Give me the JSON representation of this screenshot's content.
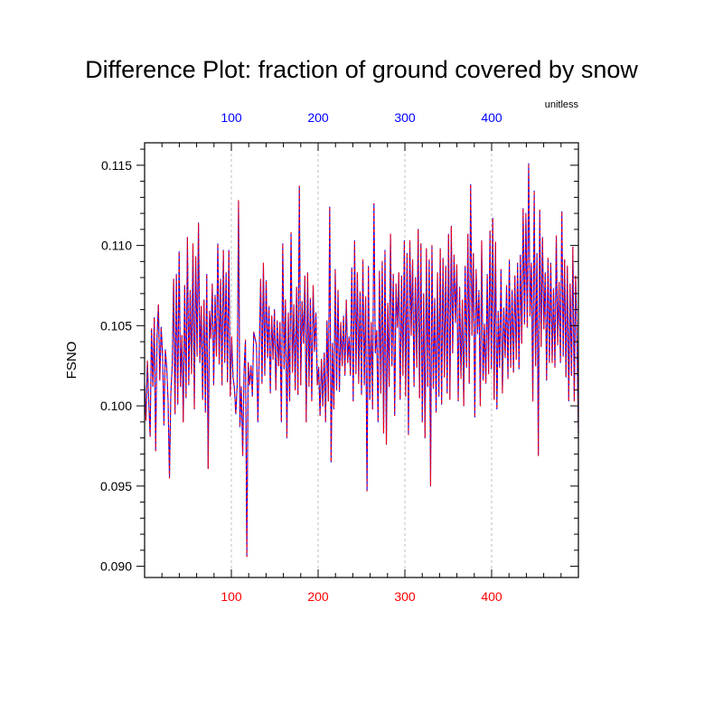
{
  "chart_data": {
    "type": "line",
    "title": "Difference Plot: fraction of ground covered by snow",
    "units_label": "unitless",
    "ylabel": "FSNO",
    "xlim": [
      0,
      500
    ],
    "ylim": [
      0.0893,
      0.1164
    ],
    "y_ticks": [
      0.09,
      0.095,
      0.1,
      0.105,
      0.11,
      0.115
    ],
    "y_tick_labels": [
      "0.090",
      "0.095",
      "0.100",
      "0.105",
      "0.110",
      "0.115"
    ],
    "x_ticks_bottom": [
      100,
      200,
      300,
      400
    ],
    "x_ticks_top": [
      100,
      200,
      300,
      400
    ],
    "colors": {
      "bottom_axis": "#ff0000",
      "top_axis": "#0000ff",
      "series_a": "#0000ff",
      "series_b": "#ff0000",
      "grid": "#b0b0b0"
    },
    "series": [
      {
        "values": [
          0.1013,
          0.0991,
          0.1028,
          0.1003,
          0.0981,
          0.1048,
          0.1012,
          0.1055,
          0.0972,
          0.1043,
          0.1063,
          0.1016,
          0.1049,
          0.1032,
          0.0988,
          0.1035,
          0.1024,
          0.1003,
          0.0955,
          0.1008,
          0.1025,
          0.1079,
          0.0995,
          0.1082,
          0.1001,
          0.1096,
          0.1012,
          0.1044,
          0.099,
          0.1075,
          0.1005,
          0.1105,
          0.1013,
          0.1072,
          0.102,
          0.1101,
          0.0998,
          0.1093,
          0.1031,
          0.1114,
          0.1027,
          0.1062,
          0.1004,
          0.1066,
          0.0996,
          0.1082,
          0.0961,
          0.1059,
          0.1042,
          0.1076,
          0.1013,
          0.1069,
          0.1031,
          0.1101,
          0.1026,
          0.1079,
          0.1013,
          0.1097,
          0.1027,
          0.1083,
          0.1015,
          0.1097,
          0.1006,
          0.1043,
          0.1018,
          0.1011,
          0.0995,
          0.1012,
          0.1128,
          0.0987,
          0.1012,
          0.0969,
          0.1022,
          0.1041,
          0.0906,
          0.1027,
          0.1013,
          0.1025,
          0.1006,
          0.1046,
          0.1042,
          0.1038,
          0.099,
          0.1035,
          0.1079,
          0.1014,
          0.1089,
          0.1019,
          0.1078,
          0.103,
          0.1062,
          0.1008,
          0.1056,
          0.1029,
          0.106,
          0.101,
          0.1053,
          0.1025,
          0.1052,
          0.099,
          0.1101,
          0.1023,
          0.1066,
          0.098,
          0.1058,
          0.1003,
          0.1108,
          0.1021,
          0.1063,
          0.101,
          0.1074,
          0.1007,
          0.1137,
          0.1013,
          0.1065,
          0.1039,
          0.1081,
          0.099,
          0.1083,
          0.1012,
          0.1067,
          0.1003,
          0.1075,
          0.1034,
          0.1058,
          0.1013,
          0.1024,
          0.0994,
          0.1029,
          0.1,
          0.1033,
          0.099,
          0.1053,
          0.1003,
          0.1124,
          0.0965,
          0.1039,
          0.0998,
          0.1085,
          0.101,
          0.1072,
          0.1009,
          0.1052,
          0.1025,
          0.1056,
          0.1019,
          0.1066,
          0.1027,
          0.1043,
          0.1019,
          0.1086,
          0.1003,
          0.1103,
          0.102,
          0.1083,
          0.1014,
          0.1071,
          0.1007,
          0.1091,
          0.1013,
          0.1068,
          0.0947,
          0.1087,
          0.1004,
          0.1052,
          0.0998,
          0.1126,
          0.1033,
          0.1047,
          0.099,
          0.1084,
          0.1008,
          0.109,
          0.0983,
          0.1097,
          0.0976,
          0.1064,
          0.1012,
          0.1107,
          0.1025,
          0.1082,
          0.0994,
          0.1076,
          0.1049,
          0.1083,
          0.1004,
          0.1081,
          0.1019,
          0.1103,
          0.1006,
          0.1095,
          0.0982,
          0.1103,
          0.1044,
          0.1091,
          0.1012,
          0.108,
          0.1024,
          0.111,
          0.1005,
          0.1101,
          0.099,
          0.107,
          0.098,
          0.1098,
          0.1012,
          0.1091,
          0.095,
          0.11,
          0.1011,
          0.1067,
          0.0996,
          0.1083,
          0.1006,
          0.1098,
          0.1001,
          0.1092,
          0.1018,
          0.1087,
          0.1008,
          0.1107,
          0.1004,
          0.1112,
          0.1033,
          0.1094,
          0.1052,
          0.1088,
          0.1003,
          0.1074,
          0.1017,
          0.1066,
          0.1,
          0.1087,
          0.1024,
          0.1107,
          0.1014,
          0.1138,
          0.1044,
          0.1095,
          0.0993,
          0.1085,
          0.1045,
          0.1072,
          0.1,
          0.1103,
          0.1016,
          0.1051,
          0.1014,
          0.1082,
          0.102,
          0.1109,
          0.1023,
          0.1117,
          0.1004,
          0.1102,
          0.0998,
          0.1059,
          0.1024,
          0.1085,
          0.1008,
          0.1061,
          0.103,
          0.1075,
          0.1017,
          0.1091,
          0.1024,
          0.1072,
          0.1021,
          0.1081,
          0.1029,
          0.1089,
          0.1023,
          0.1094,
          0.1039,
          0.1123,
          0.1051,
          0.112,
          0.1049,
          0.1151,
          0.1056,
          0.1089,
          0.1003,
          0.1134,
          0.1025,
          0.1095,
          0.0969,
          0.1122,
          0.1037,
          0.1105,
          0.1048,
          0.1083,
          0.1016,
          0.1092,
          0.1027,
          0.1089,
          0.1027,
          0.1073,
          0.1024,
          0.1106,
          0.1038,
          0.1077,
          0.1027,
          0.1121,
          0.1031,
          0.1091,
          0.1018,
          0.1087,
          0.1003,
          0.1076,
          0.1019,
          0.1099,
          0.1003,
          0.1081,
          0.1041,
          0.0983
        ]
      },
      {
        "values": [
          0.1013,
          0.0991,
          0.1028,
          0.1003,
          0.0981,
          0.1048,
          0.1012,
          0.1055,
          0.0972,
          0.1043,
          0.1063,
          0.1016,
          0.1049,
          0.1032,
          0.0988,
          0.1035,
          0.1024,
          0.1003,
          0.0955,
          0.1008,
          0.1025,
          0.1079,
          0.0995,
          0.1082,
          0.1001,
          0.1096,
          0.1012,
          0.1044,
          0.099,
          0.1075,
          0.1005,
          0.1105,
          0.1013,
          0.1072,
          0.102,
          0.1101,
          0.0998,
          0.1093,
          0.1031,
          0.1114,
          0.1027,
          0.1062,
          0.1004,
          0.1066,
          0.0996,
          0.1082,
          0.0961,
          0.1059,
          0.1042,
          0.1076,
          0.1013,
          0.1069,
          0.1031,
          0.1101,
          0.1026,
          0.1079,
          0.1013,
          0.1097,
          0.1027,
          0.1083,
          0.1015,
          0.1097,
          0.1006,
          0.1043,
          0.1018,
          0.1011,
          0.0995,
          0.1012,
          0.1128,
          0.0987,
          0.1012,
          0.0969,
          0.1022,
          0.1041,
          0.0906,
          0.1027,
          0.1013,
          0.1025,
          0.1006,
          0.1046,
          0.1042,
          0.1038,
          0.099,
          0.1035,
          0.1079,
          0.1014,
          0.1089,
          0.1019,
          0.1078,
          0.103,
          0.1062,
          0.1008,
          0.1056,
          0.1029,
          0.106,
          0.101,
          0.1053,
          0.1025,
          0.1052,
          0.099,
          0.1101,
          0.1023,
          0.1066,
          0.098,
          0.1058,
          0.1003,
          0.1108,
          0.1021,
          0.1063,
          0.101,
          0.1074,
          0.1007,
          0.1137,
          0.1013,
          0.1065,
          0.1039,
          0.1081,
          0.099,
          0.1083,
          0.1012,
          0.1067,
          0.1003,
          0.1075,
          0.1034,
          0.1058,
          0.1013,
          0.1024,
          0.0994,
          0.1029,
          0.1,
          0.1033,
          0.099,
          0.1053,
          0.1003,
          0.1124,
          0.0965,
          0.1039,
          0.0998,
          0.1085,
          0.101,
          0.1072,
          0.1009,
          0.1052,
          0.1025,
          0.1056,
          0.1019,
          0.1066,
          0.1027,
          0.1043,
          0.1019,
          0.1086,
          0.1003,
          0.1103,
          0.102,
          0.1083,
          0.1014,
          0.1071,
          0.1007,
          0.1091,
          0.1013,
          0.1068,
          0.0947,
          0.1087,
          0.1004,
          0.1052,
          0.0998,
          0.1126,
          0.1033,
          0.1047,
          0.099,
          0.1084,
          0.1008,
          0.109,
          0.0983,
          0.1097,
          0.0976,
          0.1064,
          0.1012,
          0.1107,
          0.1025,
          0.1082,
          0.0994,
          0.1076,
          0.1049,
          0.1083,
          0.1004,
          0.1081,
          0.1019,
          0.1103,
          0.1006,
          0.1095,
          0.0982,
          0.1103,
          0.1044,
          0.1091,
          0.1012,
          0.108,
          0.1024,
          0.111,
          0.1005,
          0.1101,
          0.099,
          0.107,
          0.098,
          0.1098,
          0.1012,
          0.1091,
          0.095,
          0.11,
          0.1011,
          0.1067,
          0.0996,
          0.1083,
          0.1006,
          0.1098,
          0.1001,
          0.1092,
          0.1018,
          0.1087,
          0.1008,
          0.1107,
          0.1004,
          0.1112,
          0.1033,
          0.1094,
          0.1052,
          0.1088,
          0.1003,
          0.1074,
          0.1017,
          0.1066,
          0.1,
          0.1087,
          0.1024,
          0.1107,
          0.1014,
          0.1138,
          0.1044,
          0.1095,
          0.0993,
          0.1085,
          0.1045,
          0.1072,
          0.1,
          0.1103,
          0.1016,
          0.1051,
          0.1014,
          0.1082,
          0.102,
          0.1109,
          0.1023,
          0.1117,
          0.1004,
          0.1102,
          0.0998,
          0.1059,
          0.1024,
          0.1085,
          0.1008,
          0.1061,
          0.103,
          0.1075,
          0.1017,
          0.1091,
          0.1024,
          0.1072,
          0.1021,
          0.1081,
          0.1029,
          0.1089,
          0.1023,
          0.1094,
          0.1039,
          0.1123,
          0.1051,
          0.112,
          0.1049,
          0.1151,
          0.1056,
          0.1089,
          0.1003,
          0.1134,
          0.1025,
          0.1095,
          0.0969,
          0.1122,
          0.1037,
          0.1105,
          0.1048,
          0.1083,
          0.1016,
          0.1092,
          0.1027,
          0.1089,
          0.1027,
          0.1073,
          0.1024,
          0.1106,
          0.1038,
          0.1077,
          0.1027,
          0.1121,
          0.1031,
          0.1091,
          0.1018,
          0.1087,
          0.1003,
          0.1076,
          0.1019,
          0.1099,
          0.1003,
          0.1081,
          0.1041,
          0.0983
        ]
      }
    ]
  }
}
